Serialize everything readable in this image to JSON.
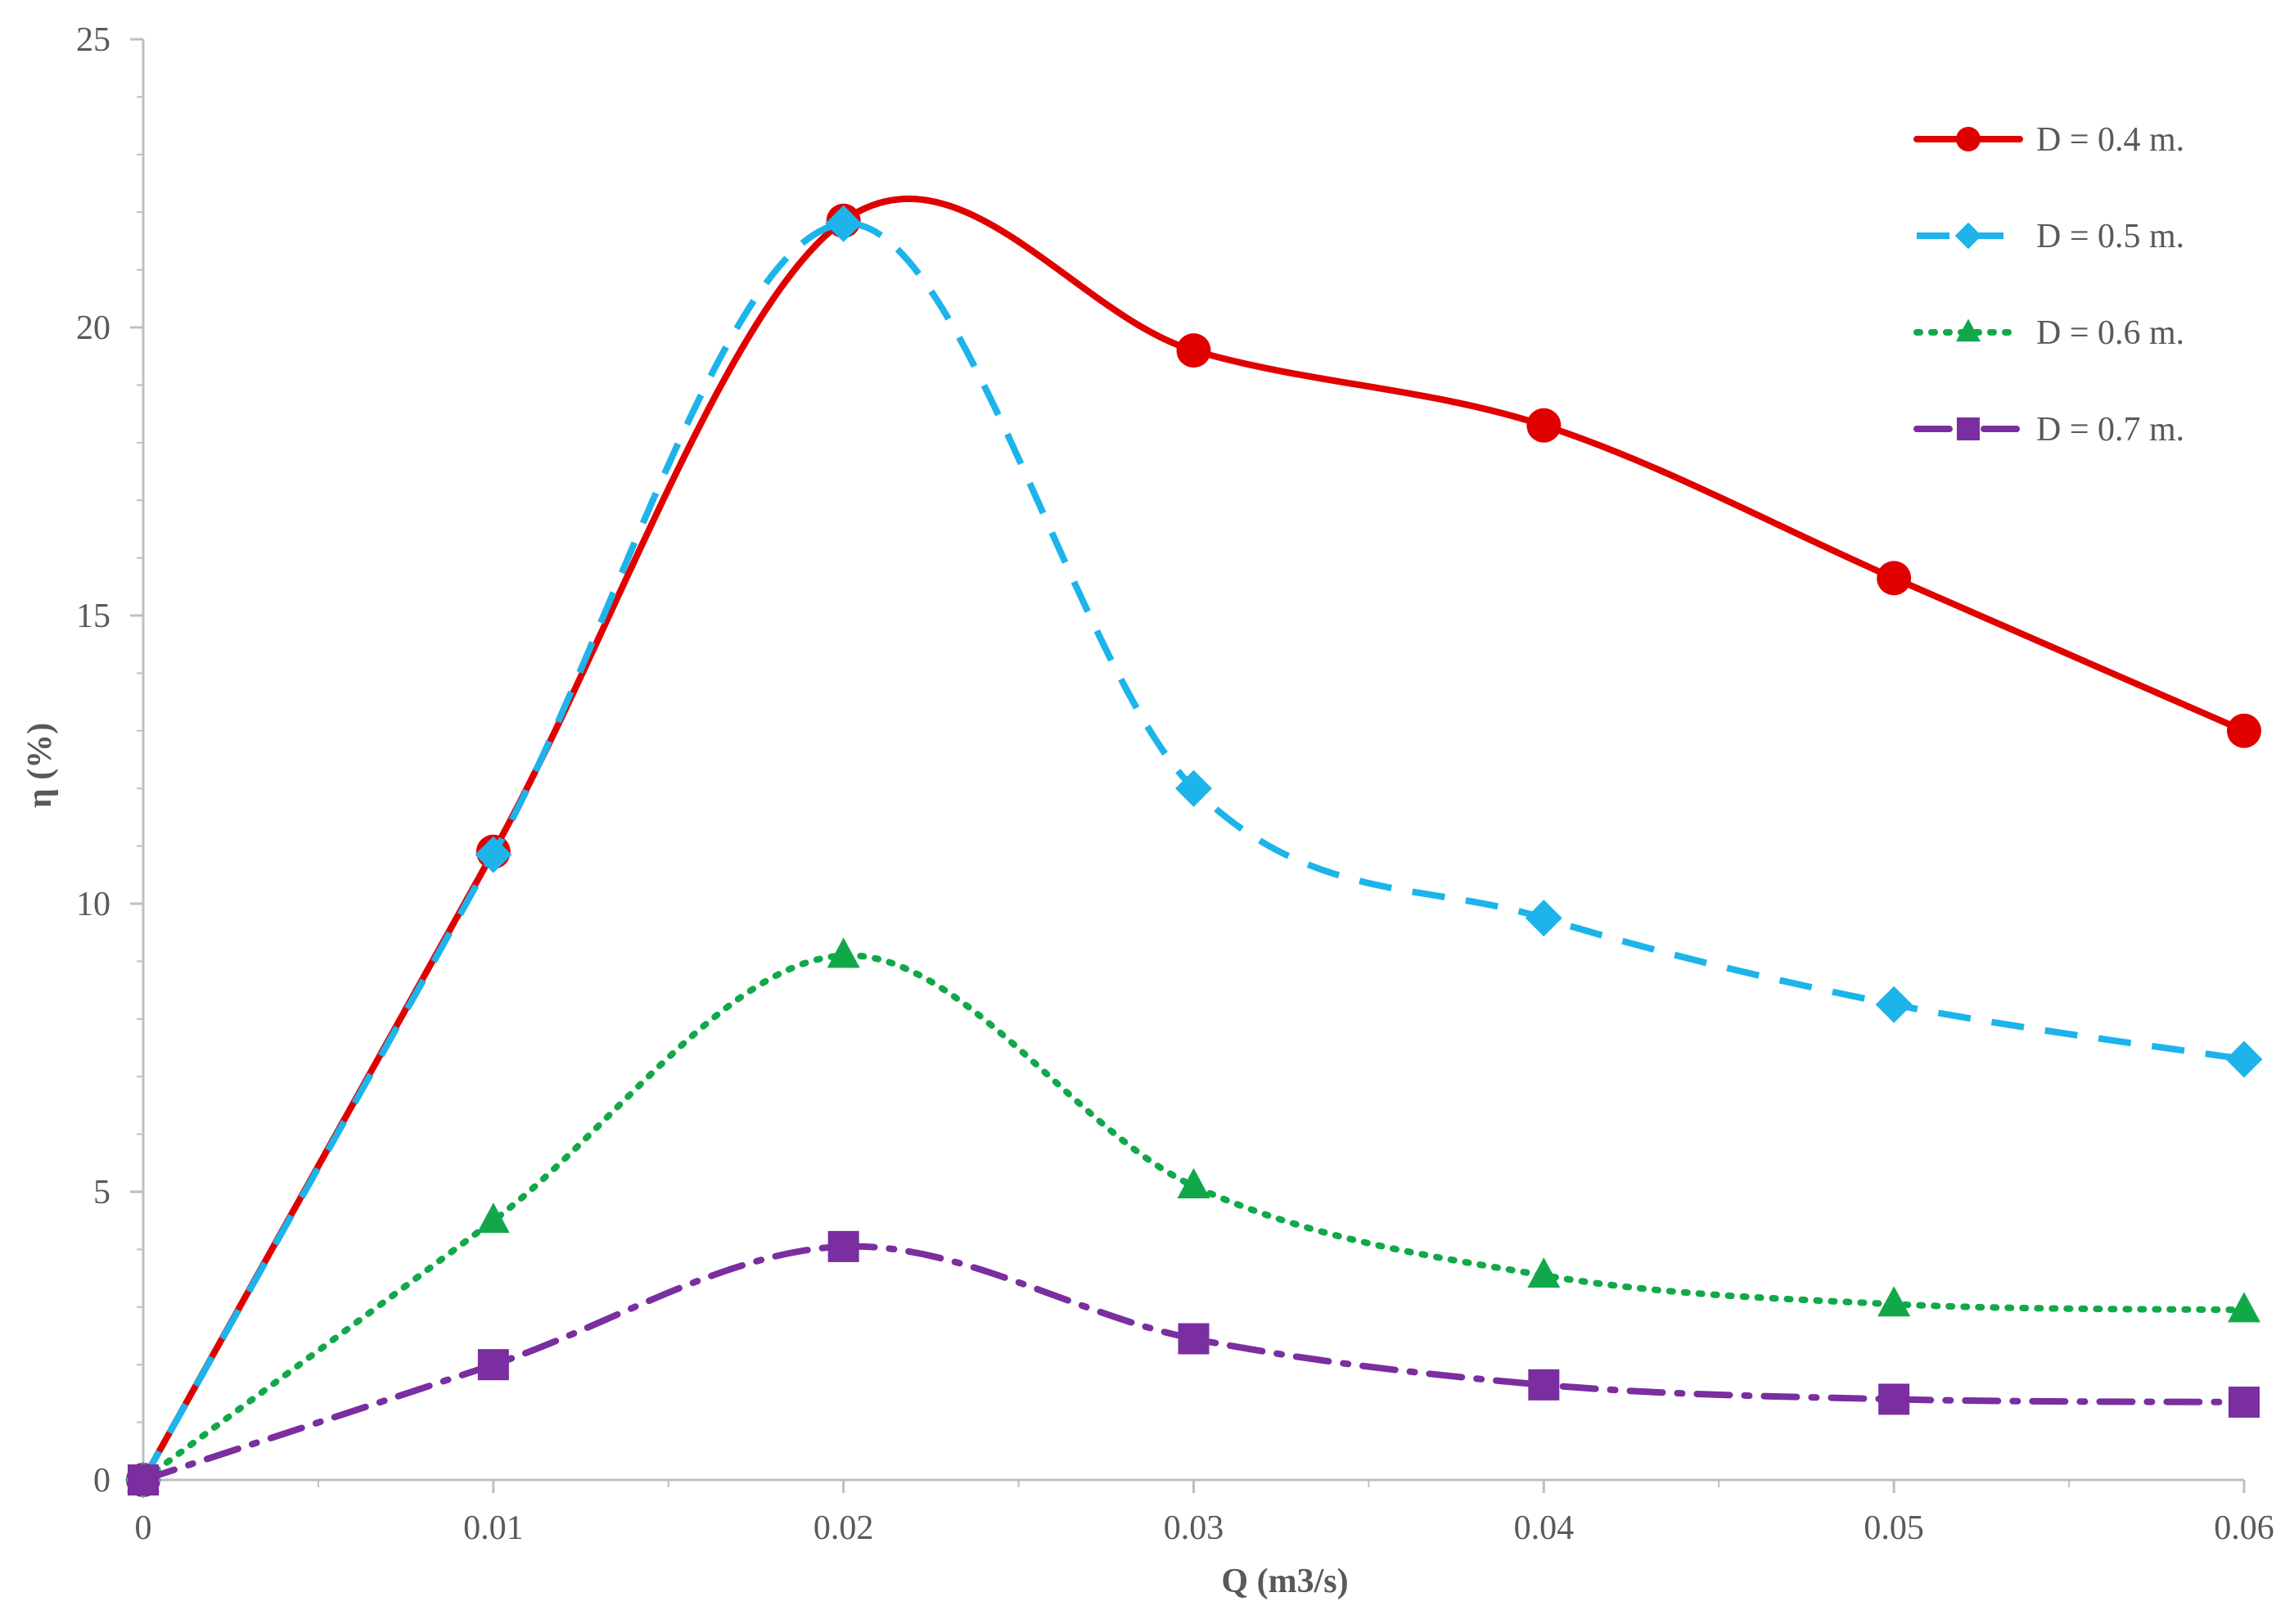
{
  "chart_data": {
    "type": "line",
    "title": "",
    "xlabel": "Q (m3/s)",
    "ylabel": "η (%)",
    "xlim": [
      0,
      0.06
    ],
    "ylim": [
      0,
      25
    ],
    "x_ticks": [
      "0",
      "0.01",
      "0.02",
      "0.03",
      "0.04",
      "0.05",
      "0.06"
    ],
    "y_ticks": [
      "0",
      "5",
      "10",
      "15",
      "20",
      "25"
    ],
    "x": [
      0,
      0.01,
      0.02,
      0.03,
      0.04,
      0.05,
      0.06
    ],
    "grid": false,
    "legend_position": "top-right",
    "smooth": true,
    "series": [
      {
        "name": "D = 0.4 m.",
        "color": "#e00000",
        "marker": "circle",
        "line_style": "solid",
        "values": [
          0,
          10.9,
          21.85,
          19.6,
          18.3,
          15.65,
          13.0
        ]
      },
      {
        "name": "D = 0.5 m.",
        "color": "#1cb4ea",
        "marker": "diamond",
        "line_style": "dashed",
        "values": [
          0,
          10.85,
          21.8,
          12.0,
          9.75,
          8.25,
          7.3
        ]
      },
      {
        "name": "D = 0.6 m.",
        "color": "#12a84a",
        "marker": "triangle",
        "line_style": "dotted",
        "values": [
          0,
          4.5,
          9.1,
          5.1,
          3.55,
          3.05,
          2.95
        ]
      },
      {
        "name": "D = 0.7 m.",
        "color": "#7a2ea0",
        "marker": "square",
        "line_style": "dash-dot",
        "values": [
          0,
          2.0,
          4.05,
          2.45,
          1.65,
          1.4,
          1.35
        ]
      }
    ]
  }
}
